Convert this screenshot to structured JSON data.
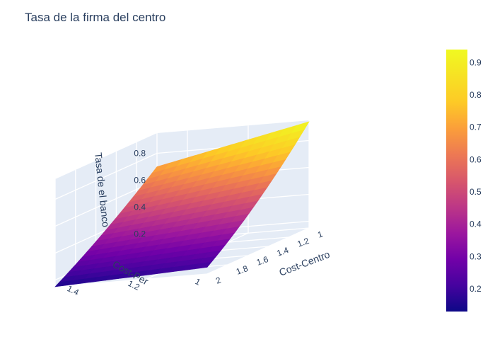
{
  "chart_data": {
    "type": "surface",
    "title": "Tasa de la firma del centro",
    "x_axis": {
      "title": "Cost-Centro",
      "range": [
        1,
        2
      ],
      "ticks": [
        "1",
        "1.2",
        "1.4",
        "1.6",
        "1.8",
        "2"
      ]
    },
    "y_axis": {
      "title": "Cost-Per",
      "range": [
        1,
        1.5
      ],
      "ticks": [
        "1",
        "1.2",
        "1.4"
      ]
    },
    "z_axis": {
      "title": "Tasa de el banco",
      "range": [
        0.15,
        0.95
      ],
      "ticks": [
        "0.2",
        "0.4",
        "0.6",
        "0.8"
      ]
    },
    "colorscale": "plasma",
    "colorbar": {
      "range": [
        0.13,
        0.94
      ],
      "ticks": [
        "0.2",
        "0.3",
        "0.4",
        "0.5",
        "0.6",
        "0.7",
        "0.8",
        "0.9"
      ]
    },
    "corner_values": [
      {
        "cost_centro": 1,
        "cost_per": 1,
        "z": 0.94
      },
      {
        "cost_centro": 1,
        "cost_per": 1.5,
        "z": 0.7
      },
      {
        "cost_centro": 2,
        "cost_per": 1,
        "z": 0.2
      },
      {
        "cost_centro": 2,
        "cost_per": 1.5,
        "z": 0.15
      }
    ]
  }
}
